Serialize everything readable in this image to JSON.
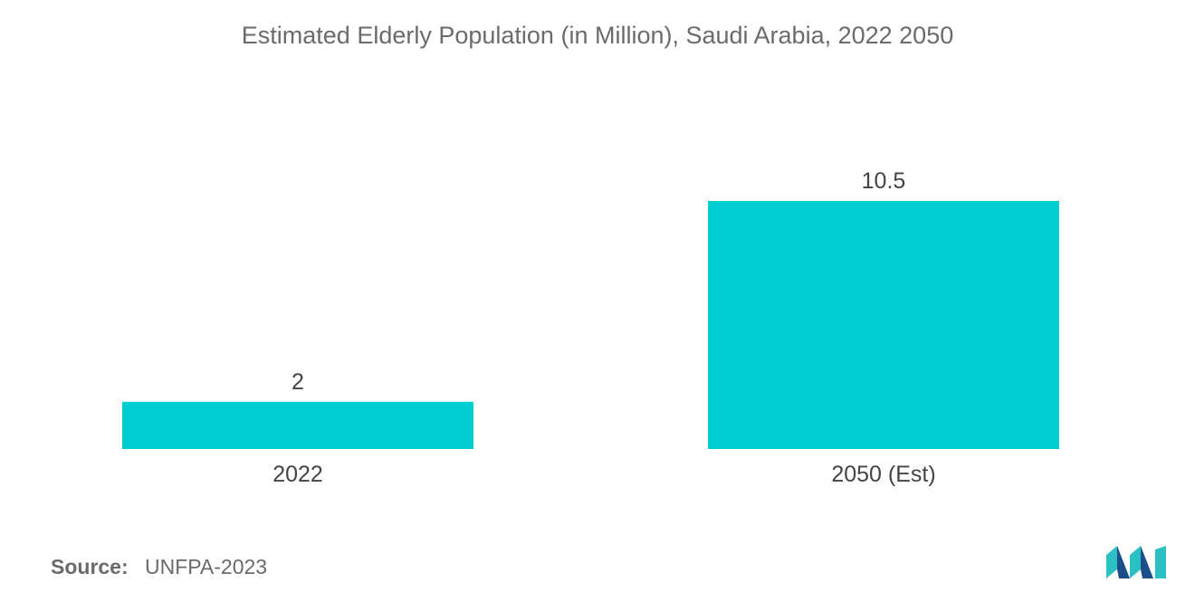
{
  "chart_data": {
    "type": "bar",
    "title": "Estimated Elderly Population (in Million), Saudi Arabia, 2022  2050",
    "categories": [
      "2022",
      "2050 (Est)"
    ],
    "values": [
      2,
      10.5
    ],
    "value_labels": [
      "2",
      "10.5"
    ],
    "xlabel": "",
    "ylabel": "",
    "ylim": [
      0,
      10.5
    ],
    "grid": false,
    "legend": "none",
    "bar_color": "#00CED1"
  },
  "source": {
    "label": "Source:",
    "text": "UNFPA-2023"
  },
  "logo": {
    "icon": "mordor-intelligence-logo",
    "colors": [
      "#1c4f8a",
      "#2bc0c4"
    ]
  }
}
